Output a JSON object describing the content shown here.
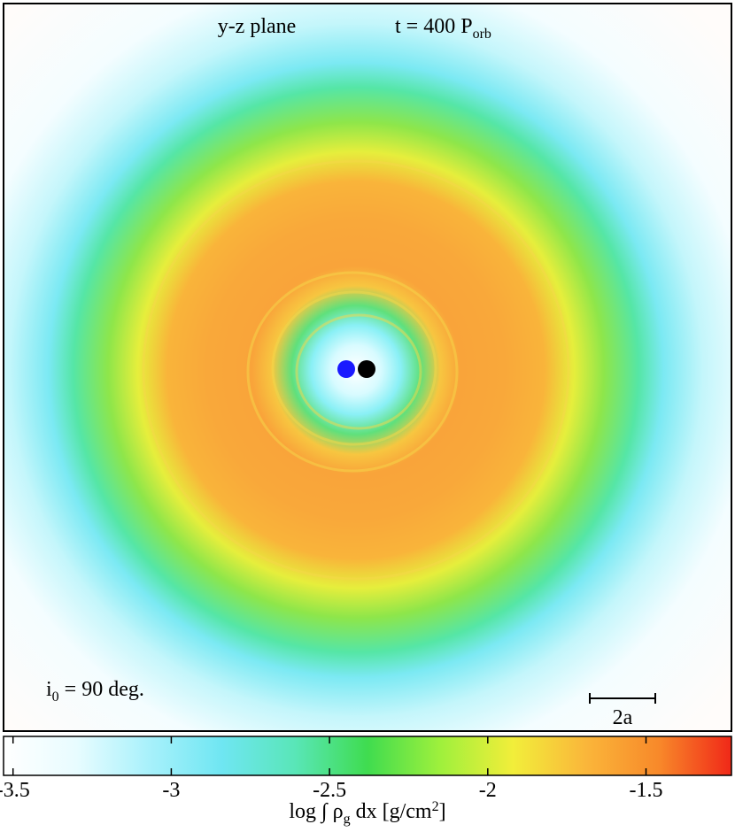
{
  "chart_data": {
    "type": "density-map",
    "title": "y-z plane",
    "time_label": {
      "main": "t = 400 P",
      "sub": "orb"
    },
    "inclination_label": {
      "main": "i",
      "sub": "0",
      "rest": " = 90 deg."
    },
    "scale_bar_label": "2a",
    "colorbar": {
      "label": {
        "pre": "log  ∫  ρ",
        "sub": "g",
        "mid": " dx [g/cm",
        "sup": "2",
        "post": "]"
      },
      "clim": [
        -3.53,
        -1.23
      ],
      "ticks": [
        -3.5,
        -3,
        -2.5,
        -2,
        -1.5
      ],
      "colormap": [
        "#ffffff",
        "#e8fcff",
        "#a8f1fb",
        "#6fe6f2",
        "#59e6b8",
        "#3fdc4f",
        "#9ff03c",
        "#f2ee3a",
        "#fab63a",
        "#f8892a",
        "#f02818"
      ]
    }
  }
}
